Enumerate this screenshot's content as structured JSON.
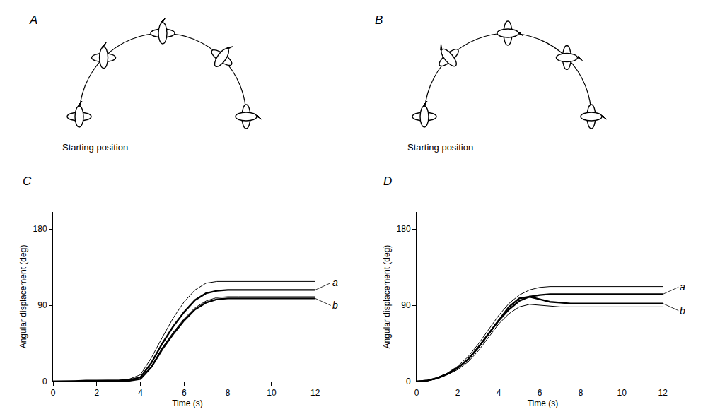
{
  "diagrams": [
    {
      "label": "A",
      "caption": "Starting position"
    },
    {
      "label": "B",
      "caption": "Starting position"
    }
  ],
  "chart_data": [
    {
      "type": "line",
      "title": "C",
      "x_label": "Time (s)",
      "y_label": "Angular displacement (deg)",
      "color": "#000000",
      "x": [
        0,
        0.5,
        1,
        1.5,
        2,
        2.5,
        3,
        3.5,
        4,
        4.5,
        5,
        5.5,
        6,
        6.5,
        7,
        7.5,
        8,
        8.5,
        9,
        9.5,
        10,
        10.5,
        11,
        11.5,
        12
      ],
      "series": [
        {
          "line_style": "thin",
          "values": [
            0,
            0,
            0.5,
            1,
            1.5,
            1.5,
            1.5,
            3,
            8,
            28,
            52,
            75,
            94,
            108,
            116,
            118,
            118,
            118,
            118,
            118,
            118,
            118,
            118,
            118,
            118
          ]
        },
        {
          "line_style": "thick",
          "values": [
            0,
            0,
            0.5,
            1,
            1,
            1,
            1,
            2,
            5,
            22,
            45,
            65,
            82,
            96,
            104,
            107,
            108,
            108,
            108,
            108,
            108,
            108,
            108,
            108,
            108
          ]
        },
        {
          "line_style": "thin",
          "values": [
            0,
            0,
            0,
            0,
            0,
            0,
            0.5,
            1,
            3,
            18,
            40,
            58,
            74,
            87,
            95,
            99,
            100,
            100,
            100,
            100,
            100,
            100,
            100,
            100,
            100
          ]
        },
        {
          "line_style": "thick",
          "values": [
            0,
            0,
            0,
            0,
            0,
            0,
            0,
            1,
            3,
            17,
            38,
            56,
            72,
            85,
            93,
            97,
            98,
            98,
            98,
            98,
            98,
            98,
            98,
            98,
            98
          ]
        }
      ],
      "annotations": [
        {
          "text": "a",
          "x": 12,
          "y": 108
        },
        {
          "text": "b",
          "x": 12,
          "y": 98
        }
      ],
      "xlim": [
        0,
        12.3
      ],
      "xticks": [
        0,
        2,
        4,
        6,
        8,
        10,
        12
      ],
      "ylim": [
        0,
        200
      ],
      "yticks": [
        0,
        90,
        180
      ],
      "grid": false
    },
    {
      "type": "line",
      "title": "D",
      "x_label": "Time (s)",
      "y_label": "Angular displacement (deg)",
      "color": "#000000",
      "x": [
        0,
        0.5,
        1,
        1.5,
        2,
        2.5,
        3,
        3.5,
        4,
        4.5,
        5,
        5.5,
        6,
        6.5,
        7,
        7.5,
        8,
        8.5,
        9,
        9.5,
        10,
        10.5,
        11,
        11.5,
        12
      ],
      "series": [
        {
          "line_style": "thin",
          "values": [
            0,
            1,
            4,
            10,
            18,
            29,
            44,
            61,
            78,
            92,
            102,
            108,
            111,
            112,
            112,
            112,
            112,
            112,
            112,
            112,
            112,
            112,
            112,
            112,
            112
          ]
        },
        {
          "line_style": "thick",
          "values": [
            0,
            1,
            4,
            9,
            16,
            26,
            40,
            56,
            72,
            85,
            95,
            100,
            102,
            103,
            103,
            103,
            103,
            103,
            103,
            103,
            103,
            103,
            103,
            103,
            103
          ]
        },
        {
          "line_style": "thick",
          "values": [
            0,
            1,
            4,
            9,
            16,
            26,
            40,
            56,
            73,
            88,
            98,
            100,
            97,
            94,
            93,
            92,
            92,
            92,
            92,
            92,
            92,
            92,
            92,
            92,
            92
          ]
        },
        {
          "line_style": "thin",
          "values": [
            0,
            1,
            3,
            8,
            14,
            23,
            36,
            52,
            68,
            80,
            88,
            91,
            90,
            89,
            88,
            88,
            88,
            88,
            88,
            88,
            88,
            88,
            88,
            88,
            88
          ]
        }
      ],
      "annotations": [
        {
          "text": "a",
          "x": 12,
          "y": 103
        },
        {
          "text": "b",
          "x": 12,
          "y": 92
        }
      ],
      "xlim": [
        0,
        12.3
      ],
      "xticks": [
        0,
        2,
        4,
        6,
        8,
        10,
        12
      ],
      "ylim": [
        0,
        200
      ],
      "yticks": [
        0,
        90,
        180
      ],
      "grid": false
    }
  ]
}
